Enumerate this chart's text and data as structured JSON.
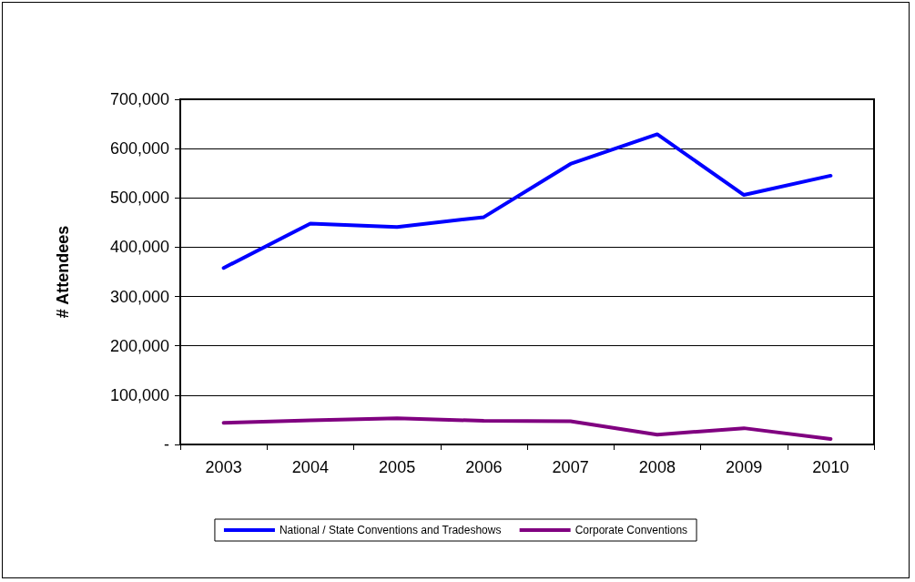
{
  "chart_data": {
    "type": "line",
    "ylabel": "# Attendees",
    "categories": [
      "2003",
      "2004",
      "2005",
      "2006",
      "2007",
      "2008",
      "2009",
      "2010"
    ],
    "series": [
      {
        "name": "National / State Conventions and Tradeshows",
        "color": "#0000ff",
        "values": [
          358000,
          448000,
          441000,
          461000,
          569000,
          629000,
          506000,
          545000
        ]
      },
      {
        "name": "Corporate Conventions",
        "color": "#800080",
        "values": [
          44000,
          49000,
          53000,
          48000,
          47000,
          20000,
          33000,
          11000
        ]
      }
    ],
    "ylim": [
      0,
      700000
    ],
    "yticks": [
      {
        "value": 0,
        "label": "-"
      },
      {
        "value": 100000,
        "label": "100,000"
      },
      {
        "value": 200000,
        "label": "200,000"
      },
      {
        "value": 300000,
        "label": "300,000"
      },
      {
        "value": 400000,
        "label": "400,000"
      },
      {
        "value": 500000,
        "label": "500,000"
      },
      {
        "value": 600000,
        "label": "600,000"
      },
      {
        "value": 700000,
        "label": "700,000"
      }
    ],
    "grid": "y",
    "legend": "bottom",
    "marker": "none",
    "line_style": "solid"
  }
}
